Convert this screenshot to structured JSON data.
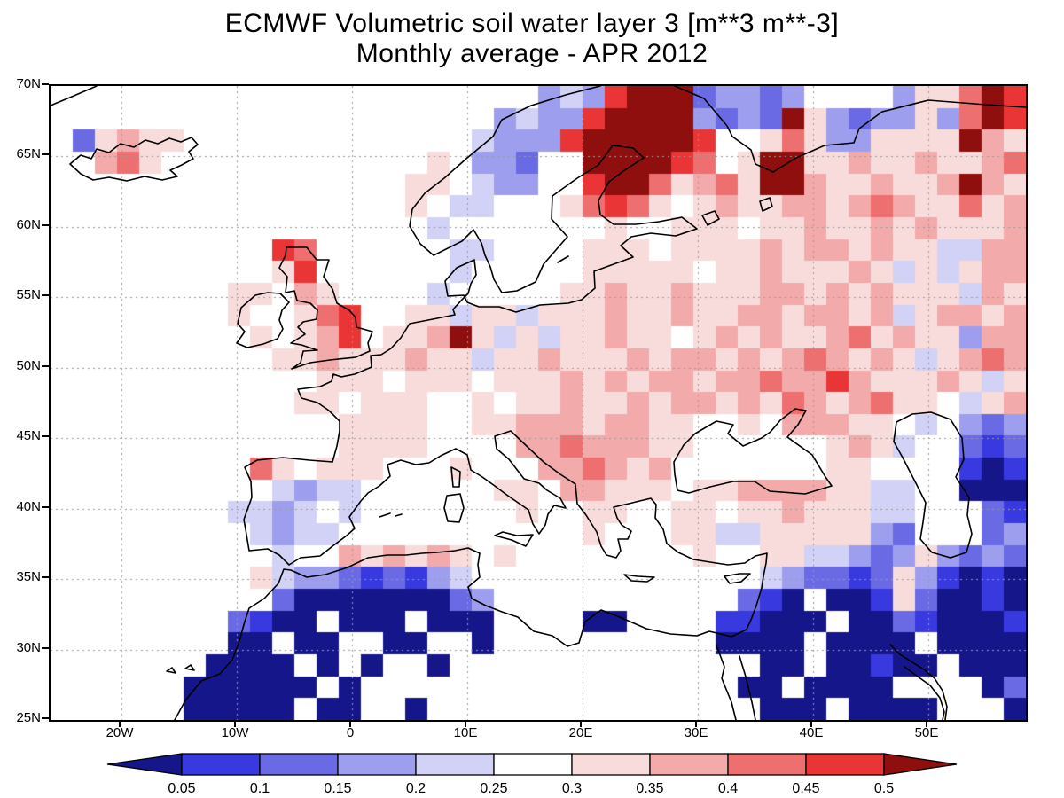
{
  "title": {
    "line1": "ECMWF Volumetric soil water layer 3 [m**3 m**-3]",
    "line2": "Monthly average - APR 2012"
  },
  "chart_data": {
    "type": "heatmap",
    "projection": "latlon",
    "variable": "Volumetric soil water layer 3",
    "units": "m**3 m**-3",
    "period": "APR 2012",
    "lon_range": [
      -26.2,
      58.5
    ],
    "lat_range": [
      25,
      70
    ],
    "levels": [
      0.05,
      0.1,
      0.15,
      0.2,
      0.25,
      0.3,
      0.35,
      0.4,
      0.45,
      0.5
    ],
    "axes": {
      "lat_ticks": [
        {
          "label": "70N",
          "lat": 70
        },
        {
          "label": "65N",
          "lat": 65
        },
        {
          "label": "60N",
          "lat": 60
        },
        {
          "label": "55N",
          "lat": 55
        },
        {
          "label": "50N",
          "lat": 50
        },
        {
          "label": "45N",
          "lat": 45
        },
        {
          "label": "40N",
          "lat": 40
        },
        {
          "label": "35N",
          "lat": 35
        },
        {
          "label": "30N",
          "lat": 30
        },
        {
          "label": "25N",
          "lat": 25
        }
      ],
      "lon_ticks": [
        {
          "label": "20W",
          "lon": -20
        },
        {
          "label": "10W",
          "lon": -10
        },
        {
          "label": "0",
          "lon": 0
        },
        {
          "label": "10E",
          "lon": 10
        },
        {
          "label": "20E",
          "lon": 20
        },
        {
          "label": "30E",
          "lon": 30
        },
        {
          "label": "40E",
          "lon": 40
        },
        {
          "label": "50E",
          "lon": 50
        }
      ],
      "lat_gridlines": [
        30,
        35,
        40,
        45,
        50,
        55,
        60,
        65
      ],
      "lon_gridlines": [
        -20,
        -10,
        0,
        10,
        20,
        30,
        40,
        50
      ],
      "grid_style": "dotted"
    },
    "palette": {
      ".": "#ffffff",
      "0": "#16168b",
      "1": "#3939e0",
      "2": "#6a6ae4",
      "3": "#9e9eee",
      "4": "#d2d2f6",
      "5": "#ffffff",
      "6": "#f8dcdc",
      "7": "#f3aaaa",
      "8": "#ee6f6f",
      "9": "#e93535",
      "A": "#8f0e0e"
    },
    "palette_meaning": {
      "0": "<0.05",
      "1": "0.05-0.1",
      "2": "0.1-0.15",
      "3": "0.15-0.2",
      "4": "0.2-0.25",
      "5": "0.25-0.3",
      "6": "0.3-0.35",
      "7": "0.35-0.4",
      "8": "0.4-0.45",
      "9": "0.45-0.5",
      "A": ">0.5",
      ".": "no data / sea"
    },
    "grid": [
      "......................3439AAA23323....3668A9",
      "....................34339AAAA3232A63233638A9",
      ".267665...........543339AAAAA9..686336666A76",
      ".57865..........565332..AAAA98.6AA6676676678",
      "...............5665433..9AA86786AA7667667A76",
      "..............556544..568986.676677678766867",
      ".............555545......6..6665667667676667",
      "..........98....5544....66656666767767664477",
      "..........69.....54.....66666566766676464677",
      "........66.76....4.....667667666776767666476",
      "........65.689..6646646667667667767767467767",
      "........56.679.667A6464667665676766786766377",
      "..........6676667664667666767767678767646787",
      "............66656665666767677677877976667646",
      "...........665666556566766767767687678665467",
      ".............6666556677767766.56.7776654.323",
      ".............6666555.77877766......6764..212",
      ".........865666...65..778767.......66....101",
      ".........543445.....66577666.6677776644..000",
      "........443454.......6..66..66566766644...21",
      ".........4344...........6...66446666632...23",
      "..........4..767676.65.......65.664432363232",
      ".........64332121345............432212631010",
      ".........52000000023...........210.001620010",
      "........2100.000.000....00....11000.00210001",
      "........00.00..00..0..........0000.0000.0000",
      ".......0000.0.0..0..............00.00100.000",
      "......000000.0.................00.0000....02",
      "......00000.00..0...............000.0000...0"
    ]
  },
  "colorbar": {
    "labels": [
      "0.05",
      "0.1",
      "0.15",
      "0.2",
      "0.25",
      "0.3",
      "0.35",
      "0.4",
      "0.45",
      "0.5"
    ],
    "box_colors": [
      "#3939e0",
      "#6a6ae4",
      "#9e9eee",
      "#d2d2f6",
      "#ffffff",
      "#f8dcdc",
      "#f3aaaa",
      "#ee6f6f",
      "#e93535"
    ],
    "arrow_left_color": "#16168b",
    "arrow_right_color": "#8f0e0e"
  }
}
